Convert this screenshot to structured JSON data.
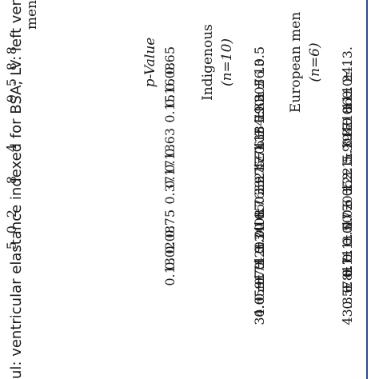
{
  "table": {
    "headers": {
      "group_a_title": "European men",
      "group_a_n": "(n=6)",
      "group_b_title": "Indigenous",
      "group_b_n": "(n=10)",
      "pvalue_label": "p-Value",
      "truncated_left_header": "men"
    },
    "rows": [
      {
        "european": "43.3 ± 6.1",
        "indigenous": "34.0 ± 7.1",
        "pvalue": "0.13",
        "left_fragment": ""
      },
      {
        "european": "0.57 ± 0.1",
        "indigenous": "0.65 ± 0.20",
        "pvalue": "0.02",
        "left_fragment": "5"
      },
      {
        "european": "0.81 ± 0.0",
        "indigenous": "0.91 ± 0.34",
        "pvalue": "0.08",
        "left_fragment": "0"
      },
      {
        "european": "0.71 ± 0.0",
        "indigenous": "0.74 ± 0.08",
        "pvalue": "0.75",
        "left_fragment": "2"
      },
      {
        "european": "3.50 ± 0.2",
        "indigenous": "3.20 ± 0.39",
        "pvalue": "0.37",
        "left_fragment": "8"
      },
      {
        "european": "17.6 ± 2.1",
        "indigenous": "16.7 ± 2.5",
        "pvalue": "0.17",
        "left_fragment": ""
      },
      {
        "european": "70.1 ± 5.9",
        "indigenous": "65.6 ± 17.1",
        "pvalue": "0.13",
        "left_fragment": "4"
      },
      {
        "european": "35.2 ± 3.3",
        "indigenous": "33.7 ± 6.7",
        "pvalue": "0.63",
        "left_fragment": ""
      },
      {
        "european": "5.19 ± 0.1",
        "indigenous": "4.74 ± 0.32",
        "pvalue": "0.15",
        "left_fragment": "9"
      },
      {
        "european": "0.40 ± 0.0",
        "indigenous": "0.38 ± 0.07",
        "pvalue": "0.16",
        "left_fragment": "5"
      },
      {
        "european": "171.1 ± 24.",
        "indigenous": "154.1 ± 36.0",
        "pvalue": "0.08",
        "left_fragment": "8"
      },
      {
        "european": "86.1 ± 13.",
        "indigenous": "79.3 ± 13.5",
        "pvalue": "0.65",
        "left_fragment": "8"
      }
    ],
    "footnote": "ul: ventricular elastance indexed for BSA; LV: left ventric"
  },
  "colors": {
    "rule": "#2a4b8d",
    "text": "#1a1a1a",
    "background": "#ffffff"
  }
}
